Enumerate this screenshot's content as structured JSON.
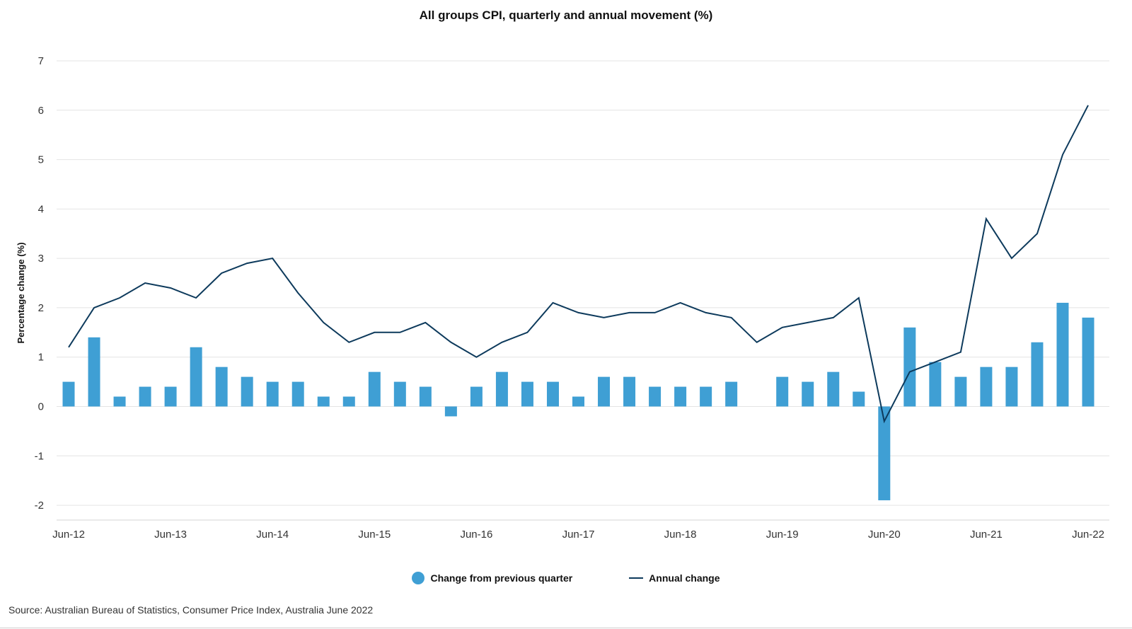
{
  "chart_data": {
    "type": "bar",
    "title": "All groups CPI, quarterly and annual movement (%)",
    "xlabel": "",
    "ylabel": "Percentage change (%)",
    "ylim": [
      -2.3,
      7
    ],
    "yticks": [
      -2,
      -1,
      0,
      1,
      2,
      3,
      4,
      5,
      6,
      7
    ],
    "x_tick_labels": [
      "Jun-12",
      "Jun-13",
      "Jun-14",
      "Jun-15",
      "Jun-16",
      "Jun-17",
      "Jun-18",
      "Jun-19",
      "Jun-20",
      "Jun-21",
      "Jun-22"
    ],
    "categories": [
      "Jun-12",
      "Sep-12",
      "Dec-12",
      "Mar-13",
      "Jun-13",
      "Sep-13",
      "Dec-13",
      "Mar-14",
      "Jun-14",
      "Sep-14",
      "Dec-14",
      "Mar-15",
      "Jun-15",
      "Sep-15",
      "Dec-15",
      "Mar-16",
      "Jun-16",
      "Sep-16",
      "Dec-16",
      "Mar-17",
      "Jun-17",
      "Sep-17",
      "Dec-17",
      "Mar-18",
      "Jun-18",
      "Sep-18",
      "Dec-18",
      "Mar-19",
      "Jun-19",
      "Sep-19",
      "Dec-19",
      "Mar-20",
      "Jun-20",
      "Sep-20",
      "Dec-20",
      "Mar-21",
      "Jun-21",
      "Sep-21",
      "Dec-21",
      "Mar-22",
      "Jun-22"
    ],
    "grid": true,
    "legend_position": "bottom-center",
    "series": [
      {
        "name": "Change from previous quarter",
        "type": "bar",
        "color": "#3f9fd4",
        "values": [
          0.5,
          1.4,
          0.2,
          0.4,
          0.4,
          1.2,
          0.8,
          0.6,
          0.5,
          0.5,
          0.2,
          0.2,
          0.7,
          0.5,
          0.4,
          -0.2,
          0.4,
          0.7,
          0.5,
          0.5,
          0.2,
          0.6,
          0.6,
          0.4,
          0.4,
          0.4,
          0.5,
          0.0,
          0.6,
          0.5,
          0.7,
          0.3,
          -1.9,
          1.6,
          0.9,
          0.6,
          0.8,
          0.8,
          1.3,
          2.1,
          1.8
        ]
      },
      {
        "name": "Annual change",
        "type": "line",
        "color": "#0d3a5c",
        "values": [
          1.2,
          2.0,
          2.2,
          2.5,
          2.4,
          2.2,
          2.7,
          2.9,
          3.0,
          2.3,
          1.7,
          1.3,
          1.5,
          1.5,
          1.7,
          1.3,
          1.0,
          1.3,
          1.5,
          2.1,
          1.9,
          1.8,
          1.9,
          1.9,
          2.1,
          1.9,
          1.8,
          1.3,
          1.6,
          1.7,
          1.8,
          2.2,
          -0.3,
          0.7,
          0.9,
          1.1,
          3.8,
          3.0,
          3.5,
          5.1,
          6.1
        ]
      }
    ],
    "source": "Source: Australian Bureau of Statistics, Consumer Price Index, Australia June 2022"
  }
}
